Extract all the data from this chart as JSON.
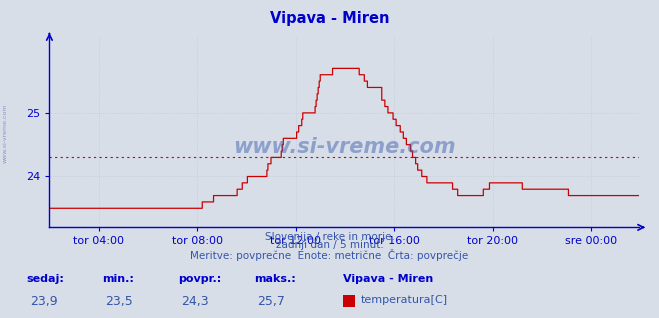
{
  "title": "Vipava - Miren",
  "title_color": "#0000cc",
  "bg_color": "#d8dee8",
  "plot_bg_color": "#d8dee8",
  "line_color": "#cc0000",
  "avg_line_color": "#cc0000",
  "avg_value": 24.3,
  "y_min": 23.2,
  "y_max": 26.2,
  "y_ticks": [
    24,
    25
  ],
  "x_tick_labels": [
    "tor 04:00",
    "tor 08:00",
    "tor 12:00",
    "tor 16:00",
    "tor 20:00",
    "sre 00:00"
  ],
  "x_ticks_pos": [
    48,
    144,
    240,
    336,
    432,
    528
  ],
  "total_points": 576,
  "subtitle1": "Slovenija / reke in morje.",
  "subtitle2": "zadnji dan / 5 minut.",
  "subtitle3": "Meritve: povprečne  Enote: metrične  Črta: povprečje",
  "label_sedaj": "sedaj:",
  "label_min": "min.:",
  "label_povpr": "povpr.:",
  "label_maks": "maks.:",
  "val_sedaj": "23,9",
  "val_min": "23,5",
  "val_povpr": "24,3",
  "val_maks": "25,7",
  "station_name": "Vipava - Miren",
  "legend_color": "#cc0000",
  "legend_label": "temperatura[C]",
  "watermark": "www.si-vreme.com",
  "watermark_color": "#3355aa",
  "side_text": "www.si-vreme.com",
  "grid_color": "#b8c4d4",
  "axis_color": "#0000cc",
  "text_color": "#3355aa",
  "label_color": "#0000cc"
}
